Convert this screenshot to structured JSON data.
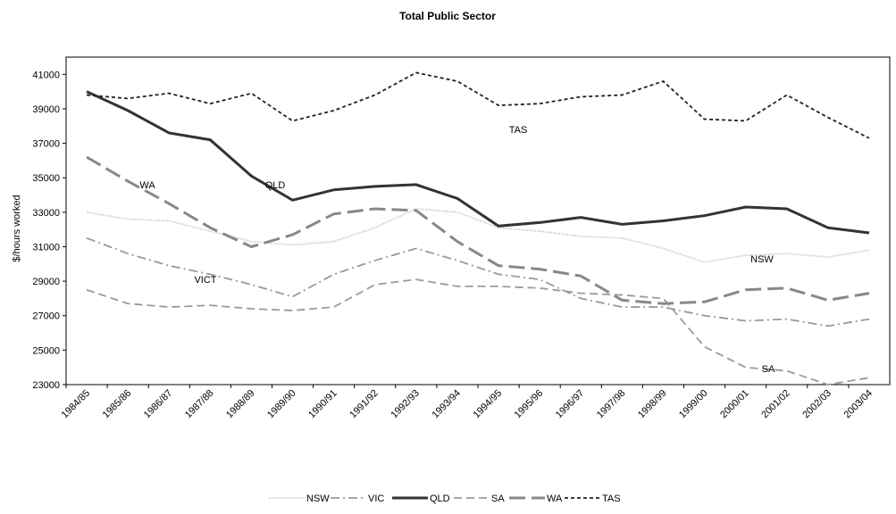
{
  "chart_data": {
    "type": "line",
    "title": "Total Public Sector",
    "y_label": "$/hours worked",
    "categories": [
      "1984/85",
      "1985/86",
      "1986/87",
      "1987/88",
      "1988/89",
      "1989/90",
      "1990/91",
      "1991/92",
      "1992/93",
      "1993/94",
      "1994/95",
      "1995/96",
      "1996/97",
      "1997/98",
      "1998/99",
      "1999/00",
      "2000/01",
      "2001/02",
      "2002/03",
      "2003/04"
    ],
    "ylim": [
      23000,
      42000
    ],
    "yticks": [
      23000,
      25000,
      27000,
      29000,
      31000,
      33000,
      35000,
      37000,
      39000,
      41000
    ],
    "series": [
      {
        "name": "NSW",
        "color": "#c8c8c8",
        "style": "dotted",
        "weight": "normal",
        "values": [
          33000,
          32600,
          32500,
          31900,
          31300,
          31100,
          31300,
          32100,
          33200,
          33000,
          32100,
          31900,
          31600,
          31500,
          30900,
          30100,
          30500,
          30600,
          30400,
          30800
        ]
      },
      {
        "name": "VIC",
        "color": "#999999",
        "style": "dash-dot",
        "weight": "normal",
        "values": [
          31500,
          30600,
          29900,
          29400,
          28800,
          28100,
          29400,
          30200,
          30900,
          30200,
          29400,
          29100,
          28000,
          27500,
          27500,
          27000,
          26700,
          26800,
          26400,
          26800
        ]
      },
      {
        "name": "QLD",
        "color": "#333333",
        "style": "solid",
        "weight": "bold",
        "values": [
          40000,
          38900,
          37600,
          37200,
          35100,
          33700,
          34300,
          34500,
          34600,
          33800,
          32200,
          32400,
          32700,
          32300,
          32500,
          32800,
          33300,
          33200,
          32100,
          31800
        ]
      },
      {
        "name": "SA",
        "color": "#9a9a9a",
        "style": "dashed",
        "weight": "normal",
        "values": [
          28500,
          27700,
          27500,
          27600,
          27400,
          27300,
          27500,
          28800,
          29100,
          28700,
          28700,
          28600,
          28300,
          28200,
          28000,
          25200,
          24000,
          23800,
          23000,
          23400
        ]
      },
      {
        "name": "WA",
        "color": "#888888",
        "style": "long-dash",
        "weight": "bold",
        "values": [
          36200,
          34800,
          33500,
          32100,
          31000,
          31700,
          32900,
          33200,
          33100,
          31300,
          29900,
          29700,
          29300,
          27900,
          27700,
          27800,
          28500,
          28600,
          27900,
          28300
        ]
      },
      {
        "name": "TAS",
        "color": "#222222",
        "style": "short-dash",
        "weight": "normal",
        "values": [
          39800,
          39600,
          39900,
          39300,
          39900,
          38300,
          38900,
          39800,
          41100,
          40600,
          39200,
          39300,
          39700,
          39800,
          40600,
          38400,
          38300,
          39800,
          38500,
          37300
        ]
      }
    ],
    "annotations": [
      "TAS",
      "WA",
      "QLD",
      "NSW",
      "VICT",
      "SA"
    ]
  }
}
